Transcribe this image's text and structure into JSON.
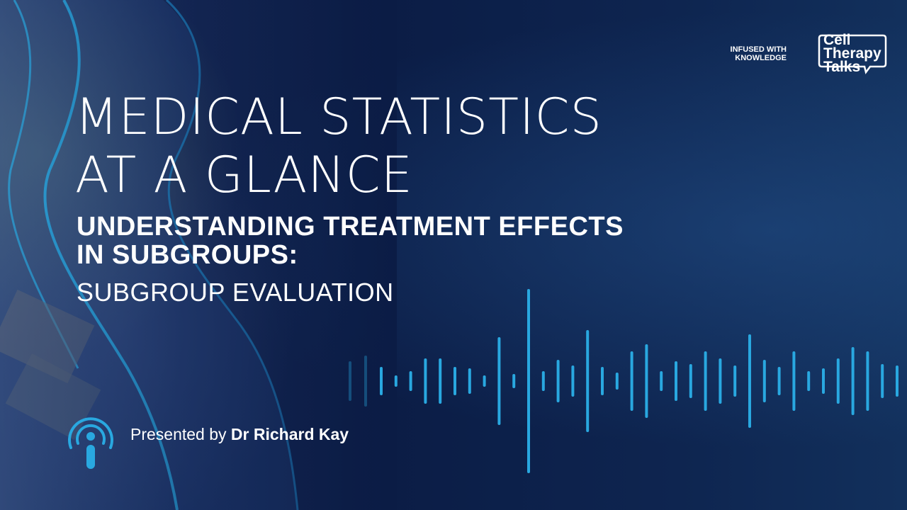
{
  "title": {
    "line1": "MEDICAL STATISTICS",
    "line2": "AT A GLANCE"
  },
  "subtitle": {
    "line1": "UNDERSTANDING TREATMENT EFFECTS",
    "line2": "IN SUBGROUPS:"
  },
  "tagline": "SUBGROUP EVALUATION",
  "presenter": {
    "prefix": "Presented by",
    "name": "Dr Richard Kay"
  },
  "brand": {
    "tag_line1": "INFUSED WITH",
    "tag_line2": "KNOWLEDGE",
    "logo_line1": "Cell",
    "logo_line2": "Therapy",
    "logo_line3": "Talks"
  },
  "colors": {
    "background": "#0b1c45",
    "accent": "#29a8e0",
    "text": "#ffffff"
  },
  "icons": {
    "podcast": "podcast-icon",
    "waveform": "audio-waveform"
  }
}
